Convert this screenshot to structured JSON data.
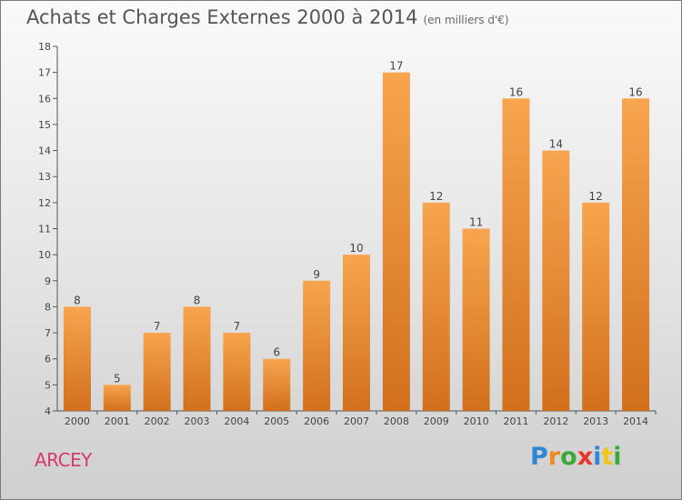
{
  "chart_data": {
    "type": "bar",
    "title": "Achats et Charges Externes 2000 à 2014",
    "unit_note": "(en milliers d'€)",
    "categories": [
      "2000",
      "2001",
      "2002",
      "2003",
      "2004",
      "2005",
      "2006",
      "2007",
      "2008",
      "2009",
      "2010",
      "2011",
      "2012",
      "2013",
      "2014"
    ],
    "values": [
      8,
      5,
      7,
      8,
      7,
      6,
      9,
      10,
      17,
      12,
      11,
      16,
      14,
      12,
      16
    ],
    "ylim": [
      4,
      18
    ],
    "yticks": [
      4,
      5,
      6,
      7,
      8,
      9,
      10,
      11,
      12,
      13,
      14,
      15,
      16,
      17,
      18
    ],
    "xlabel": "",
    "ylabel": "",
    "grid": false,
    "colors": {
      "bar_light": "#f7a54e",
      "bar_dark": "#d2701c",
      "axis": "#555555",
      "label": "#444444"
    }
  },
  "footer": {
    "commune": "ARCEY",
    "logo_letters": [
      "P",
      "r",
      "o",
      "x",
      "i",
      "t",
      "i"
    ],
    "logo_colors": [
      "#2e86d6",
      "#f08a1c",
      "#3aa83a",
      "#e8362b",
      "#2e86d6",
      "#f0c419",
      "#3aa83a"
    ]
  }
}
